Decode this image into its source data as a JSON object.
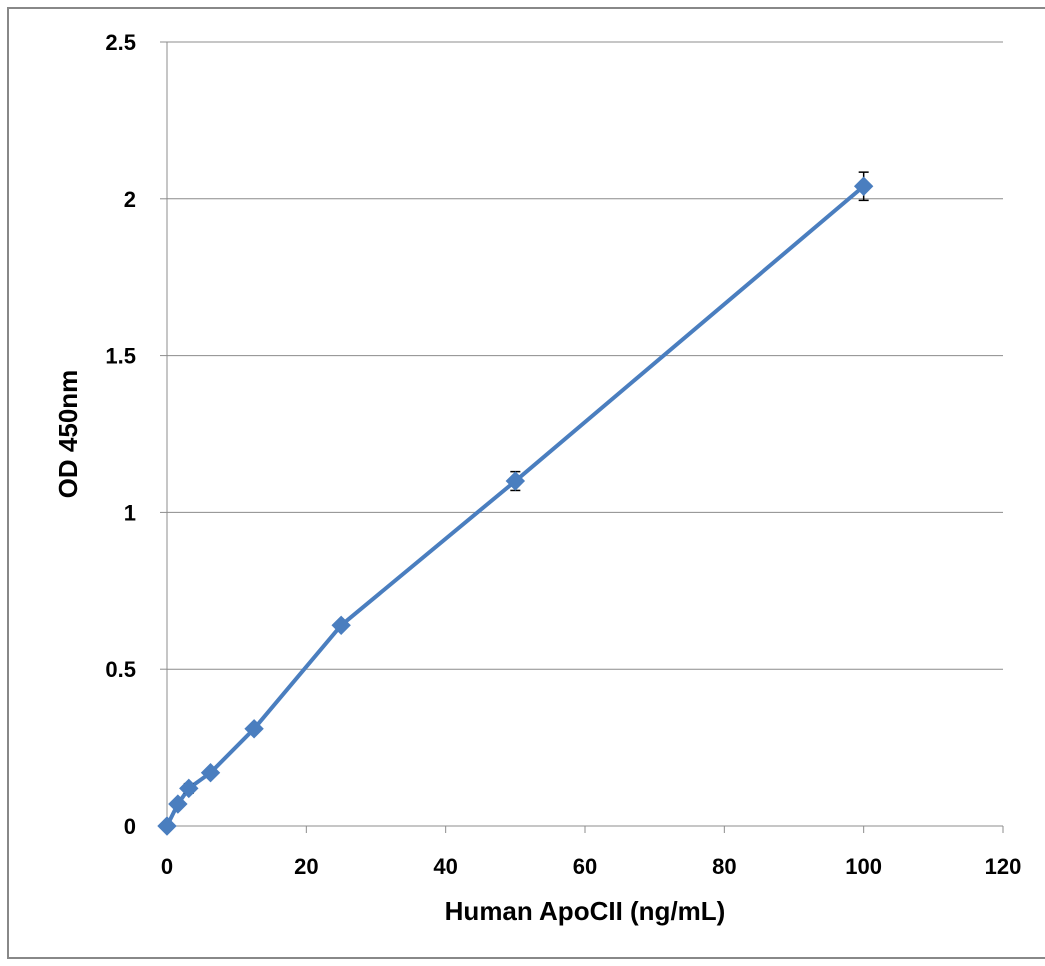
{
  "chart_data": {
    "type": "line",
    "xlabel": "Human ApoCII (ng/mL)",
    "ylabel": "OD 450nm",
    "xlim": [
      0,
      120
    ],
    "ylim": [
      0,
      2.5
    ],
    "x_ticks": [
      "0",
      "20",
      "40",
      "60",
      "80",
      "100",
      "120"
    ],
    "y_ticks": [
      "0",
      "0.5",
      "1",
      "1.5",
      "2",
      "2.5"
    ],
    "grid": "horizontal",
    "legend": "none",
    "series_color": "#4a7ebf",
    "series": [
      {
        "x": [
          0,
          1.56,
          3.13,
          6.25,
          12.5,
          25,
          50,
          100
        ],
        "y": [
          0.0,
          0.07,
          0.12,
          0.17,
          0.31,
          0.64,
          1.1,
          2.04
        ],
        "error": [
          0.005,
          0.01,
          0.015,
          0.01,
          0.01,
          0.01,
          0.03,
          0.045
        ]
      }
    ]
  }
}
